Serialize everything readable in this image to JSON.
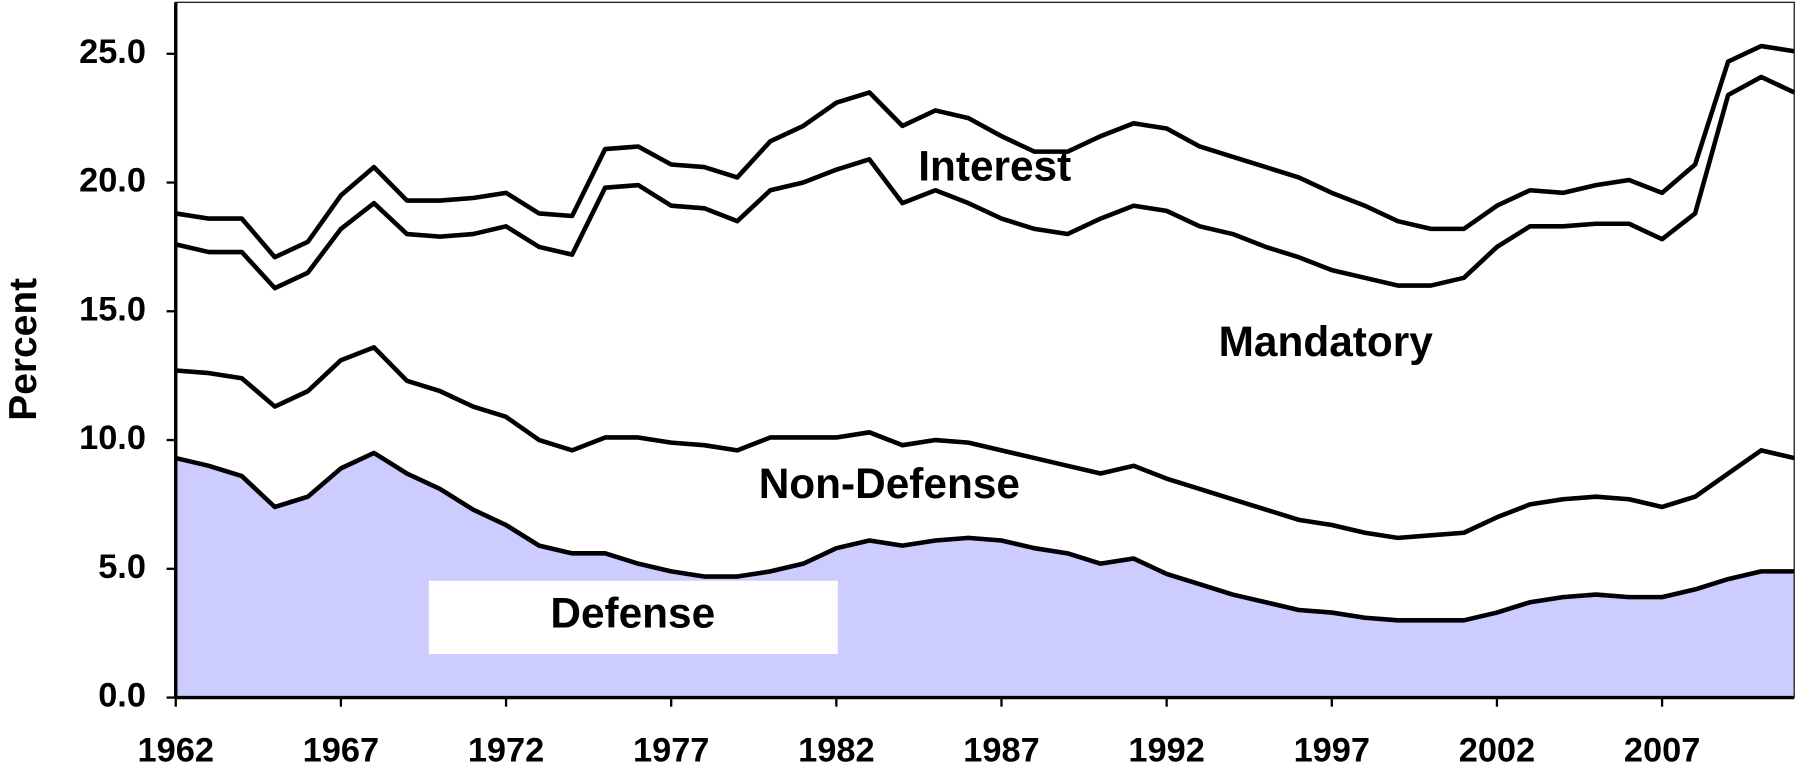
{
  "chart_data": {
    "type": "area",
    "stacked": true,
    "y_label": "Percent",
    "x": [
      1962,
      1963,
      1964,
      1965,
      1966,
      1967,
      1968,
      1969,
      1970,
      1971,
      1972,
      1973,
      1974,
      1975,
      1976,
      1977,
      1978,
      1979,
      1980,
      1981,
      1982,
      1983,
      1984,
      1985,
      1986,
      1987,
      1988,
      1989,
      1990,
      1991,
      1992,
      1993,
      1994,
      1995,
      1996,
      1997,
      1998,
      1999,
      2000,
      2001,
      2002,
      2003,
      2004,
      2005,
      2006,
      2007,
      2008,
      2009,
      2010,
      2011
    ],
    "series": [
      {
        "name": "Defense",
        "color": "#ccccff",
        "values": [
          9.3,
          9.0,
          8.6,
          7.4,
          7.8,
          8.9,
          9.5,
          8.7,
          8.1,
          7.3,
          6.7,
          5.9,
          5.6,
          5.6,
          5.2,
          4.9,
          4.7,
          4.7,
          4.9,
          5.2,
          5.8,
          6.1,
          5.9,
          6.1,
          6.2,
          6.1,
          5.8,
          5.6,
          5.2,
          5.4,
          4.8,
          4.4,
          4.0,
          3.7,
          3.4,
          3.3,
          3.1,
          3.0,
          3.0,
          3.0,
          3.3,
          3.7,
          3.9,
          4.0,
          3.9,
          3.9,
          4.2,
          4.6,
          4.9,
          4.9
        ]
      },
      {
        "name": "Non-Defense",
        "color": "#ffffff",
        "values": [
          3.4,
          3.6,
          3.8,
          3.9,
          4.1,
          4.2,
          4.1,
          3.6,
          3.8,
          4.0,
          4.2,
          4.1,
          4.0,
          4.5,
          4.9,
          5.0,
          5.1,
          4.9,
          5.2,
          4.9,
          4.3,
          4.2,
          3.9,
          3.9,
          3.7,
          3.5,
          3.5,
          3.4,
          3.5,
          3.6,
          3.7,
          3.7,
          3.7,
          3.6,
          3.5,
          3.4,
          3.3,
          3.2,
          3.3,
          3.4,
          3.7,
          3.8,
          3.8,
          3.8,
          3.8,
          3.5,
          3.6,
          4.1,
          4.7,
          4.4
        ]
      },
      {
        "name": "Mandatory",
        "color": "#ffffff",
        "values": [
          4.9,
          4.7,
          4.9,
          4.6,
          4.6,
          5.1,
          5.6,
          5.7,
          6.0,
          6.7,
          7.4,
          7.5,
          7.6,
          9.7,
          9.8,
          9.2,
          9.2,
          8.9,
          9.6,
          9.9,
          10.4,
          10.6,
          9.4,
          9.7,
          9.3,
          9.0,
          8.9,
          9.0,
          9.9,
          10.1,
          10.4,
          10.2,
          10.3,
          10.2,
          10.2,
          9.9,
          9.9,
          9.8,
          9.7,
          9.9,
          10.5,
          10.8,
          10.6,
          10.6,
          10.7,
          10.4,
          11.0,
          14.7,
          14.5,
          14.2
        ]
      },
      {
        "name": "Interest",
        "color": "#ffffff",
        "values": [
          1.2,
          1.3,
          1.3,
          1.2,
          1.2,
          1.3,
          1.4,
          1.3,
          1.4,
          1.4,
          1.3,
          1.3,
          1.5,
          1.5,
          1.5,
          1.6,
          1.6,
          1.7,
          1.9,
          2.2,
          2.6,
          2.6,
          3.0,
          3.1,
          3.3,
          3.2,
          3.0,
          3.2,
          3.2,
          3.2,
          3.2,
          3.1,
          3.0,
          3.1,
          3.1,
          3.0,
          2.8,
          2.5,
          2.2,
          1.9,
          1.6,
          1.4,
          1.3,
          1.5,
          1.7,
          1.8,
          1.9,
          1.3,
          1.2,
          1.6
        ]
      }
    ],
    "line_color": "#000000",
    "annotations": [
      "Interest",
      "Mandatory",
      "Non-Defense",
      "Defense"
    ],
    "xlim": [
      1962,
      2011
    ],
    "xticks": [
      1962,
      1967,
      1972,
      1977,
      1982,
      1987,
      1992,
      1997,
      2002,
      2007
    ],
    "ylim": [
      0,
      27
    ],
    "yticks": [
      {
        "value": 0,
        "label": "0.0"
      },
      {
        "value": 5,
        "label": "5.0"
      },
      {
        "value": 10,
        "label": "10.0"
      },
      {
        "value": 15,
        "label": "15.0"
      },
      {
        "value": 20,
        "label": "20.0"
      },
      {
        "value": 25,
        "label": "25.0"
      }
    ]
  }
}
